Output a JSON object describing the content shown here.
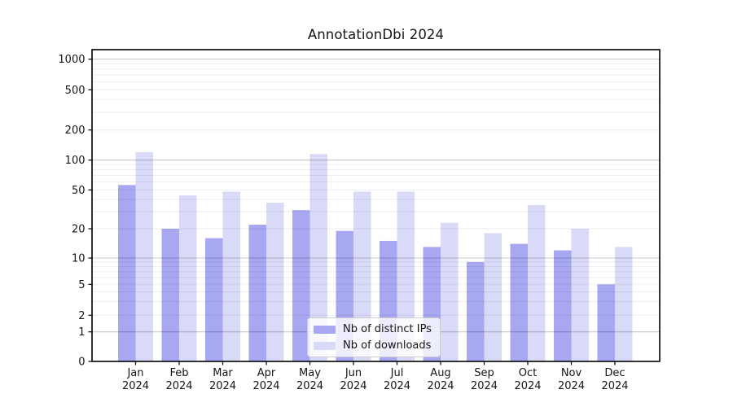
{
  "chart_data": {
    "type": "bar",
    "title": "AnnotationDbi 2024",
    "categories": [
      "Jan 2024",
      "Feb 2024",
      "Mar 2024",
      "Apr 2024",
      "May 2024",
      "Jun 2024",
      "Jul 2024",
      "Aug 2024",
      "Sep 2024",
      "Oct 2024",
      "Nov 2024",
      "Dec 2024"
    ],
    "series": [
      {
        "name": "Nb of distinct IPs",
        "color": "#a7a7f2",
        "values": [
          56,
          20,
          16,
          22,
          31,
          19,
          15,
          13,
          9,
          14,
          12,
          5
        ]
      },
      {
        "name": "Nb of downloads",
        "color": "#d9d9f8",
        "values": [
          120,
          44,
          48,
          37,
          115,
          48,
          48,
          23,
          18,
          35,
          20,
          13
        ]
      }
    ],
    "xlabel": "",
    "ylabel": "",
    "y_scale": "symlog",
    "y_ticks": [
      0,
      1,
      2,
      5,
      10,
      20,
      50,
      100,
      200,
      500,
      1000
    ],
    "ylim": [
      0,
      1250
    ],
    "grid": true,
    "legend_position": "lower center",
    "colors": {
      "axis": "#000000",
      "tick_label": "#151515",
      "grid_major": "rgba(0,0,0,0.22)",
      "grid_minor": "rgba(0,0,0,0.07)",
      "background": "#ffffff"
    }
  }
}
